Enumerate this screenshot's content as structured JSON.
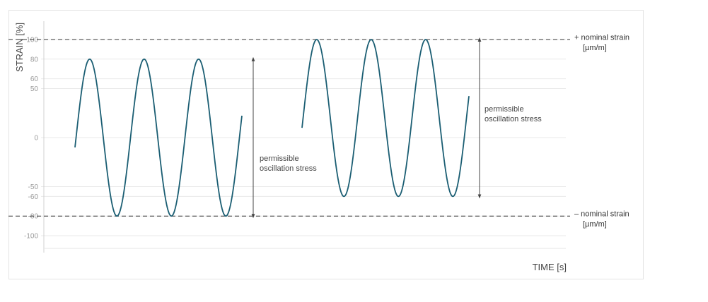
{
  "chart_data": {
    "type": "line",
    "ylabel": "STRAIN [%]",
    "xlabel": "TIME [s]",
    "ylim": [
      -105,
      110
    ],
    "grid": true,
    "yticks": [
      100,
      80,
      60,
      50,
      0,
      -50,
      -60,
      -80,
      -100
    ],
    "series": [
      {
        "amplitude": 80,
        "cycles": 3,
        "phase_start": "rising from about -10",
        "color": "#1b5e73"
      },
      {
        "amplitude_max": 100,
        "amplitude_min": -60,
        "cycles": 3,
        "phase_start": "rising from about 10",
        "color": "#1b5e73"
      }
    ],
    "reference_lines": [
      {
        "value": 100,
        "style": "dashed",
        "label": "+ nominal strain",
        "unit": "[µm/m]"
      },
      {
        "value": -80,
        "style": "dashed",
        "label": "– nominal strain",
        "unit": "[µm/m]"
      }
    ],
    "annotations": [
      {
        "text_line1": "permissible",
        "text_line2": "oscillation stress",
        "from": 80,
        "to": -80
      },
      {
        "text_line1": "permissible",
        "text_line2": "oscillation stress",
        "from": 100,
        "to": -60
      }
    ]
  }
}
